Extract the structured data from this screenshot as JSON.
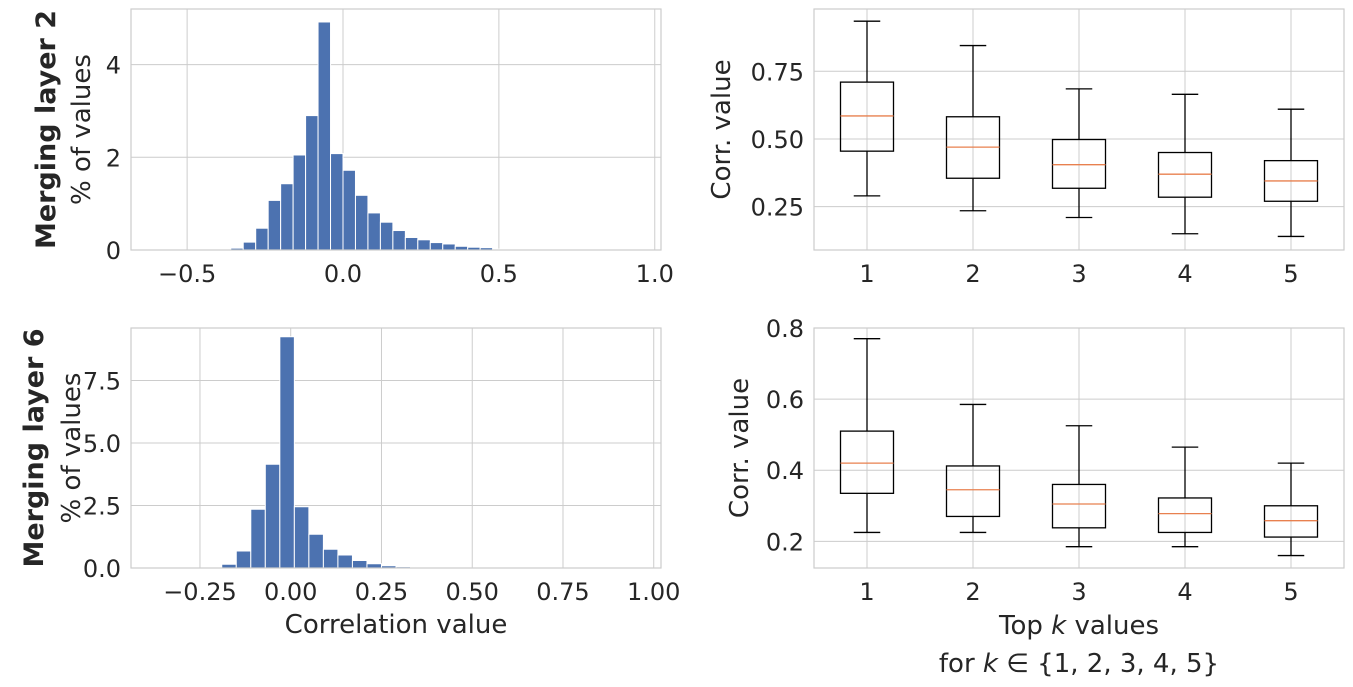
{
  "chart_data": [
    {
      "type": "bar",
      "panel": "histogram-layer-2",
      "row_label": "Merging layer 2",
      "ylabel": "% of values",
      "xlabel": "",
      "xlim": [
        -0.68,
        1.02
      ],
      "ylim": [
        0,
        5.2
      ],
      "xticks": [
        -0.5,
        0.0,
        0.5,
        1.0
      ],
      "xtick_labels": [
        "−0.5",
        "0.0",
        "0.5",
        "1.0"
      ],
      "yticks": [
        0,
        2,
        4
      ],
      "ytick_labels": [
        "0",
        "2",
        "4"
      ],
      "bin_edges": [
        -0.4,
        -0.36,
        -0.32,
        -0.28,
        -0.24,
        -0.2,
        -0.16,
        -0.12,
        -0.08,
        -0.04,
        0.0,
        0.04,
        0.08,
        0.12,
        0.16,
        0.2,
        0.24,
        0.28,
        0.32,
        0.36,
        0.4,
        0.44,
        0.48,
        0.52,
        0.56,
        0.6,
        0.64,
        0.68
      ],
      "values": [
        0.02,
        0.04,
        0.17,
        0.47,
        1.07,
        1.43,
        2.05,
        2.9,
        4.92,
        2.08,
        1.72,
        1.18,
        0.8,
        0.6,
        0.42,
        0.27,
        0.22,
        0.16,
        0.13,
        0.08,
        0.06,
        0.05,
        0.02,
        0.01,
        0.01,
        0.005,
        0.003
      ]
    },
    {
      "type": "box",
      "panel": "boxplot-layer-2",
      "ylabel": "Corr. value",
      "xlabel": "",
      "ylim": [
        0.09,
        0.98
      ],
      "yticks": [
        0.25,
        0.5,
        0.75
      ],
      "ytick_labels": [
        "0.25",
        "0.50",
        "0.75"
      ],
      "categories": [
        "1",
        "2",
        "3",
        "4",
        "5"
      ],
      "boxes": [
        {
          "whislo": 0.29,
          "q1": 0.455,
          "med": 0.585,
          "q3": 0.71,
          "whishi": 0.935
        },
        {
          "whislo": 0.235,
          "q1": 0.355,
          "med": 0.47,
          "q3": 0.582,
          "whishi": 0.845
        },
        {
          "whislo": 0.21,
          "q1": 0.318,
          "med": 0.405,
          "q3": 0.498,
          "whishi": 0.685
        },
        {
          "whislo": 0.15,
          "q1": 0.285,
          "med": 0.37,
          "q3": 0.45,
          "whishi": 0.665
        },
        {
          "whislo": 0.14,
          "q1": 0.27,
          "med": 0.345,
          "q3": 0.42,
          "whishi": 0.61
        }
      ]
    },
    {
      "type": "bar",
      "panel": "histogram-layer-6",
      "row_label": "Merging layer 6",
      "ylabel": "% of values",
      "xlabel": "Correlation value",
      "xlim": [
        -0.44,
        1.02
      ],
      "ylim": [
        0,
        9.6
      ],
      "xticks": [
        -0.25,
        0.0,
        0.25,
        0.5,
        0.75,
        1.0
      ],
      "xtick_labels": [
        "−0.25",
        "0.00",
        "0.25",
        "0.50",
        "0.75",
        "1.00"
      ],
      "yticks": [
        0.0,
        2.5,
        5.0,
        7.5
      ],
      "ytick_labels": [
        "0.0",
        "2.5",
        "5.0",
        "7.5"
      ],
      "bin_edges": [
        -0.23,
        -0.19,
        -0.15,
        -0.11,
        -0.07,
        -0.03,
        0.01,
        0.05,
        0.09,
        0.13,
        0.17,
        0.21,
        0.25,
        0.29,
        0.33,
        0.37,
        0.41,
        0.45,
        0.49,
        0.53
      ],
      "values": [
        0.03,
        0.15,
        0.68,
        2.35,
        4.15,
        9.25,
        2.45,
        1.35,
        0.75,
        0.52,
        0.3,
        0.17,
        0.09,
        0.05,
        0.03,
        0.02,
        0.01,
        0.005,
        0.003
      ]
    },
    {
      "type": "box",
      "panel": "boxplot-layer-6",
      "ylabel": "Corr. value",
      "xlabel_line1_pre": "Top ",
      "xlabel_line1_var": "k",
      "xlabel_line1_post": " values",
      "xlabel_line2_pre": "for ",
      "xlabel_line2_var": "k",
      "xlabel_line2_post": " ∈ {1, 2, 3, 4, 5}",
      "ylim": [
        0.125,
        0.8
      ],
      "yticks": [
        0.2,
        0.4,
        0.6,
        0.8
      ],
      "ytick_labels": [
        "0.2",
        "0.4",
        "0.6",
        "0.8"
      ],
      "categories": [
        "1",
        "2",
        "3",
        "4",
        "5"
      ],
      "boxes": [
        {
          "whislo": 0.225,
          "q1": 0.335,
          "med": 0.42,
          "q3": 0.51,
          "whishi": 0.77
        },
        {
          "whislo": 0.225,
          "q1": 0.27,
          "med": 0.345,
          "q3": 0.412,
          "whishi": 0.585
        },
        {
          "whislo": 0.185,
          "q1": 0.238,
          "med": 0.305,
          "q3": 0.36,
          "whishi": 0.525
        },
        {
          "whislo": 0.185,
          "q1": 0.225,
          "med": 0.278,
          "q3": 0.322,
          "whishi": 0.465
        },
        {
          "whislo": 0.16,
          "q1": 0.212,
          "med": 0.258,
          "q3": 0.3,
          "whishi": 0.42
        }
      ]
    }
  ],
  "colors": {
    "bar": "#4c72b0",
    "median": "#e8804f",
    "grid": "#cccccc",
    "box": "#000000",
    "text": "#262626"
  }
}
